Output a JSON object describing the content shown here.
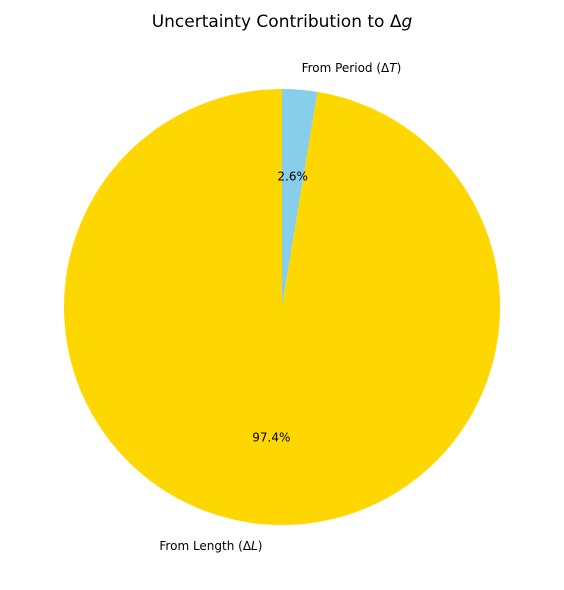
{
  "chart_data": {
    "type": "pie",
    "title": "Uncertainty Contribution to Δg",
    "title_plain": "Uncertainty Contribution to Δ",
    "title_symbol": "g",
    "slices": [
      {
        "label_plain": "From Period (Δ",
        "label_symbol": "T",
        "label_close": ")",
        "label": "From Period (ΔT)",
        "value": 2.6,
        "percent_label": "2.6%",
        "color": "#87CEEB"
      },
      {
        "label_plain": "From Length (Δ",
        "label_symbol": "L",
        "label_close": ")",
        "label": "From Length (ΔL)",
        "value": 97.4,
        "percent_label": "97.4%",
        "color": "#FFD700"
      }
    ],
    "start_angle_deg": 90,
    "direction": "clockwise"
  }
}
